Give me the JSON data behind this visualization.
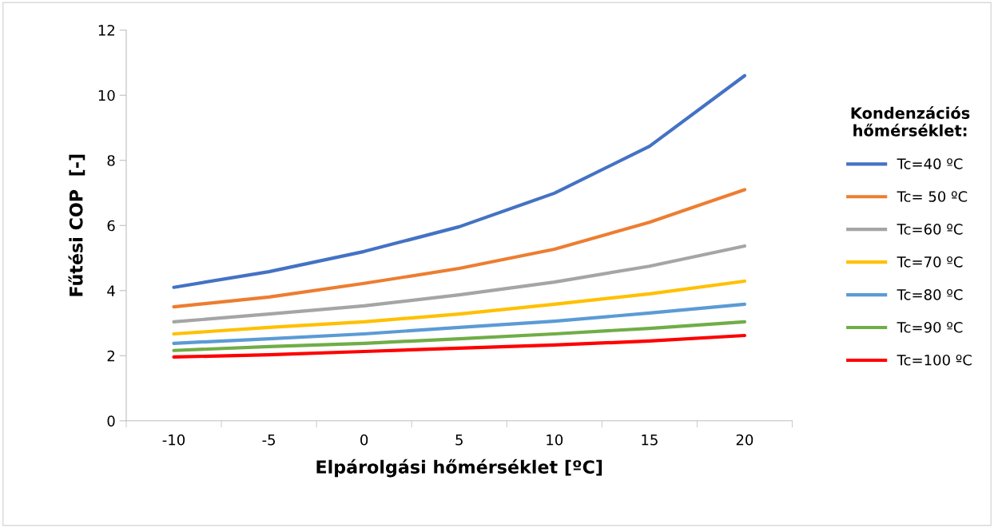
{
  "chart_data": {
    "type": "line",
    "xlabel": "Elpárolgási hőmérséklet [ºC]",
    "ylabel": "Fűtési COP  [-]",
    "legend_title": "Kondenzációs\nhőmérséklet:",
    "categories": [
      "-10",
      "-5",
      "0",
      "5",
      "10",
      "15",
      "20"
    ],
    "series": [
      {
        "name": "Tc=40 ºC",
        "color": "#4472c4",
        "values": [
          4.1,
          4.58,
          5.2,
          5.96,
          6.99,
          8.43,
          10.6
        ]
      },
      {
        "name": "Tc= 50 ºC",
        "color": "#ed7d31",
        "values": [
          3.5,
          3.8,
          4.22,
          4.68,
          5.27,
          6.1,
          7.1
        ]
      },
      {
        "name": "Tc=60 ºC",
        "color": "#a5a5a5",
        "values": [
          3.04,
          3.28,
          3.53,
          3.87,
          4.26,
          4.75,
          5.37
        ]
      },
      {
        "name": "Tc=70 ºC",
        "color": "#ffc000",
        "values": [
          2.67,
          2.87,
          3.04,
          3.28,
          3.58,
          3.9,
          4.29
        ]
      },
      {
        "name": "Tc=80 ºC",
        "color": "#5b9bd5",
        "values": [
          2.38,
          2.52,
          2.67,
          2.87,
          3.06,
          3.31,
          3.58
        ]
      },
      {
        "name": "Tc=90 ºC",
        "color": "#70ad47",
        "values": [
          2.16,
          2.28,
          2.38,
          2.52,
          2.67,
          2.84,
          3.04
        ]
      },
      {
        "name": "Tc=100 ºC",
        "color": "#ff0000",
        "values": [
          1.96,
          2.03,
          2.13,
          2.23,
          2.33,
          2.45,
          2.62
        ]
      }
    ],
    "ylim": [
      0,
      12
    ],
    "yticks": [
      0,
      2,
      4,
      6,
      8,
      10,
      12
    ],
    "grid": false,
    "legend": "right",
    "marker": "none",
    "line_style": "solid"
  }
}
